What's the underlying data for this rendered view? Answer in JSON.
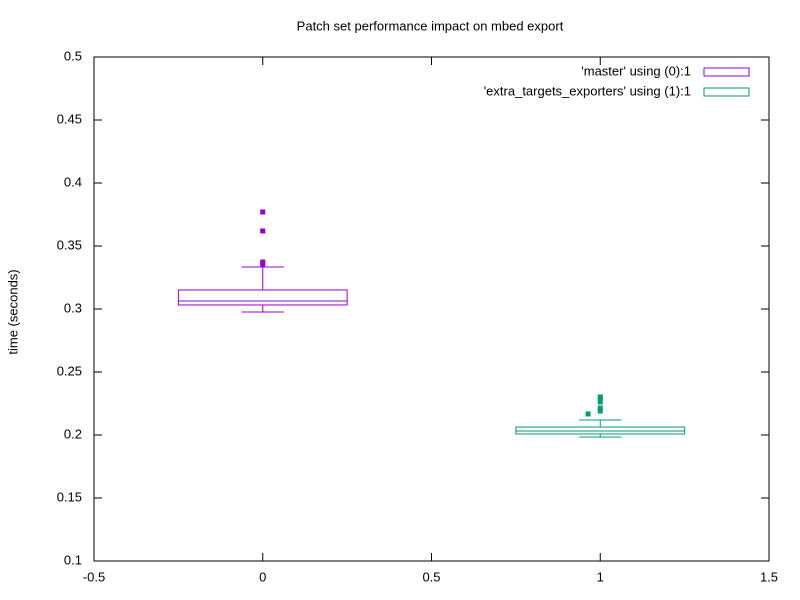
{
  "chart_data": {
    "type": "boxplot",
    "title": "Patch set performance impact on mbed export",
    "y_label": "time (seconds)",
    "xlim": [
      -0.5,
      1.5
    ],
    "xticks": [
      -0.5,
      0,
      0.5,
      1,
      1.5
    ],
    "ylim": [
      0.1,
      0.5
    ],
    "yticks": [
      0.1,
      0.15,
      0.2,
      0.25,
      0.3,
      0.35,
      0.4,
      0.45,
      0.5
    ],
    "legend": "top-right",
    "series": [
      {
        "name": "'master' using (0):1",
        "color": "#9400d3",
        "x": 0,
        "box_width": 0.5,
        "min": 0.2976,
        "q1": 0.3032,
        "median": 0.3063,
        "q3": 0.3151,
        "max": 0.3333,
        "outlier_x": [
          0,
          0,
          0,
          0
        ],
        "outliers": [
          0.377,
          0.3619,
          0.3373,
          0.3357
        ]
      },
      {
        "name": "'extra_targets_exporters' using (1):1",
        "color": "#009e73",
        "x": 1,
        "box_width": 0.5,
        "min": 0.1984,
        "q1": 0.2008,
        "median": 0.2032,
        "q3": 0.2063,
        "max": 0.2119,
        "outlier_x": [
          1,
          1,
          1,
          1,
          1,
          0.964
        ],
        "outliers": [
          0.2302,
          0.2286,
          0.2262,
          0.2214,
          0.219,
          0.2167
        ]
      }
    ]
  }
}
